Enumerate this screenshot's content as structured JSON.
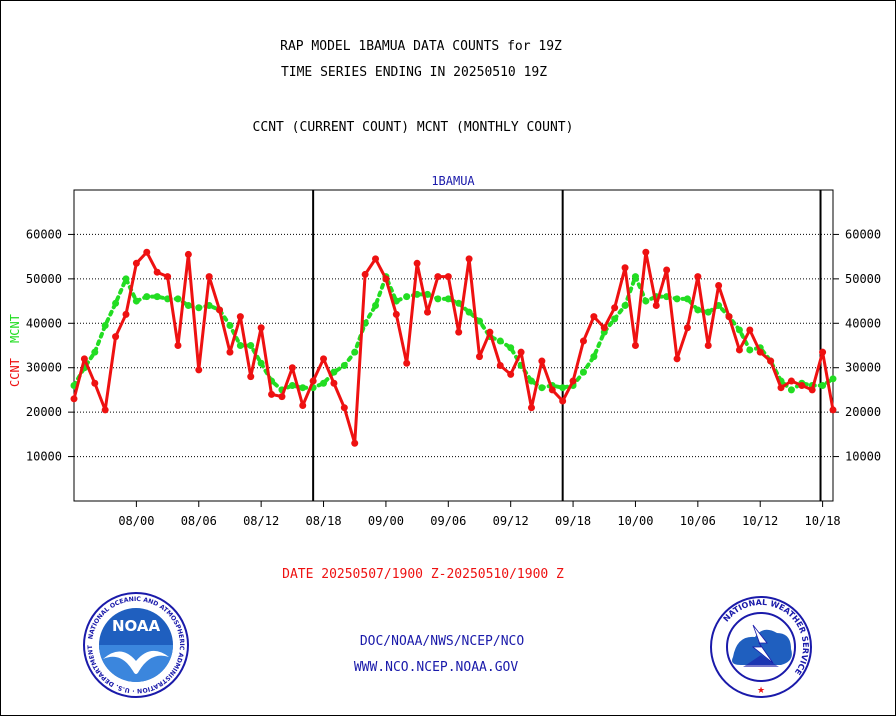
{
  "header": {
    "title_line1": "RAP MODEL 1BAMUA DATA COUNTS for 19Z",
    "title_line2": "TIME SERIES ENDING IN 20250510 19Z",
    "subtitle": "CCNT (CURRENT COUNT) MCNT (MONTHLY COUNT)"
  },
  "footer": {
    "date_range": "DATE 20250507/1900 Z-20250510/1900 Z",
    "org_path": "DOC/NOAA/NWS/NCEP/NCO",
    "website": "WWW.NCO.NCEP.NOAA.GOV"
  },
  "logos": {
    "noaa": {
      "text": "NOAA",
      "ring_text": "NATIONAL OCEANIC AND ATMOSPHERIC ADMINISTRATION · U.S. DEPARTMENT OF COMMERCE"
    },
    "nws": {
      "ring_text": "NATIONAL WEATHER SERVICE"
    }
  },
  "colors": {
    "ccnt": "#ee1111",
    "mcnt": "#22dd22",
    "panel_title": "#1a1aaa",
    "date_text": "#ee1111",
    "org_text": "#1a1aaa"
  },
  "chart_data": {
    "type": "line",
    "panel_title": "1BAMUA",
    "ylabel_ccnt": "CCNT",
    "ylabel_mcnt": "MCNT",
    "ylim": [
      0,
      70000
    ],
    "yticks": [
      10000,
      20000,
      30000,
      40000,
      50000,
      60000
    ],
    "ytick_labels": [
      "10000",
      "20000",
      "30000",
      "40000",
      "50000",
      "60000"
    ],
    "xlim": [
      0,
      73
    ],
    "xticks": [
      {
        "x": 6,
        "label": "08/00"
      },
      {
        "x": 12,
        "label": "08/06"
      },
      {
        "x": 18,
        "label": "08/12"
      },
      {
        "x": 24,
        "label": "08/18"
      },
      {
        "x": 30,
        "label": "09/00"
      },
      {
        "x": 36,
        "label": "09/06"
      },
      {
        "x": 42,
        "label": "09/12"
      },
      {
        "x": 48,
        "label": "09/18"
      },
      {
        "x": 54,
        "label": "10/00"
      },
      {
        "x": 60,
        "label": "10/06"
      },
      {
        "x": 66,
        "label": "10/12"
      },
      {
        "x": 72,
        "label": "10/18"
      }
    ],
    "day_boundaries": [
      23,
      47,
      71.8
    ],
    "grid": "horizontal dotted",
    "series": [
      {
        "name": "CCNT",
        "x": [
          0,
          1,
          2,
          3,
          4,
          5,
          6,
          7,
          8,
          9,
          10,
          11,
          12,
          13,
          14,
          15,
          16,
          17,
          18,
          19,
          20,
          21,
          22,
          23,
          24,
          25,
          26,
          27,
          28,
          29,
          30,
          31,
          32,
          33,
          34,
          35,
          36,
          37,
          38,
          39,
          40,
          41,
          42,
          43,
          44,
          45,
          46,
          47,
          48,
          49,
          50,
          51,
          52,
          53,
          54,
          55,
          56,
          57,
          58,
          59,
          60,
          61,
          62,
          63,
          64,
          65,
          66,
          67,
          68,
          69,
          70,
          71,
          72,
          73
        ],
        "values": [
          23000,
          32000,
          26500,
          20500,
          37000,
          42000,
          53500,
          56000,
          51500,
          50500,
          35000,
          55500,
          29500,
          50500,
          43000,
          33500,
          41500,
          28000,
          39000,
          24000,
          23500,
          30000,
          21500,
          27000,
          32000,
          26500,
          21000,
          13000,
          51000,
          54500,
          50000,
          42000,
          31000,
          53500,
          42500,
          50500,
          50500,
          38000,
          54500,
          32500,
          38000,
          30500,
          28500,
          33500,
          21000,
          31500,
          25000,
          22500,
          27000,
          36000,
          41500,
          39000,
          43500,
          52500,
          35000,
          56000,
          44000,
          52000,
          32000,
          39000,
          50500,
          35000,
          48500,
          41500,
          34000,
          38500,
          33500,
          31500,
          25500,
          27000,
          26000,
          25000,
          33500,
          20500
        ]
      },
      {
        "name": "MCNT",
        "x": [
          0,
          1,
          2,
          3,
          4,
          5,
          6,
          7,
          8,
          9,
          10,
          11,
          12,
          13,
          14,
          15,
          16,
          17,
          18,
          19,
          20,
          21,
          22,
          23,
          24,
          25,
          26,
          27,
          28,
          29,
          30,
          31,
          32,
          33,
          34,
          35,
          36,
          37,
          38,
          39,
          40,
          41,
          42,
          43,
          44,
          45,
          46,
          47,
          48,
          49,
          50,
          51,
          52,
          53,
          54,
          55,
          56,
          57,
          58,
          59,
          60,
          61,
          62,
          63,
          64,
          65,
          66,
          67,
          68,
          69,
          70,
          71,
          72,
          73
        ],
        "values": [
          26000,
          30000,
          33500,
          39500,
          44500,
          50000,
          45000,
          46000,
          46000,
          45500,
          45500,
          44000,
          43500,
          44000,
          43000,
          39500,
          35000,
          35000,
          31000,
          27000,
          25000,
          26000,
          25500,
          25500,
          26500,
          29000,
          30500,
          33500,
          40000,
          44000,
          50500,
          45000,
          46000,
          46500,
          46500,
          45500,
          45500,
          44500,
          42500,
          40500,
          37000,
          36000,
          34500,
          30500,
          27000,
          25500,
          26000,
          25500,
          26000,
          29000,
          32500,
          38000,
          41000,
          44000,
          50500,
          45000,
          46000,
          46000,
          45500,
          45500,
          43000,
          42500,
          44000,
          41500,
          38500,
          34000,
          34500,
          31500,
          27000,
          25000,
          26500,
          26000,
          26000,
          27500
        ]
      }
    ]
  }
}
